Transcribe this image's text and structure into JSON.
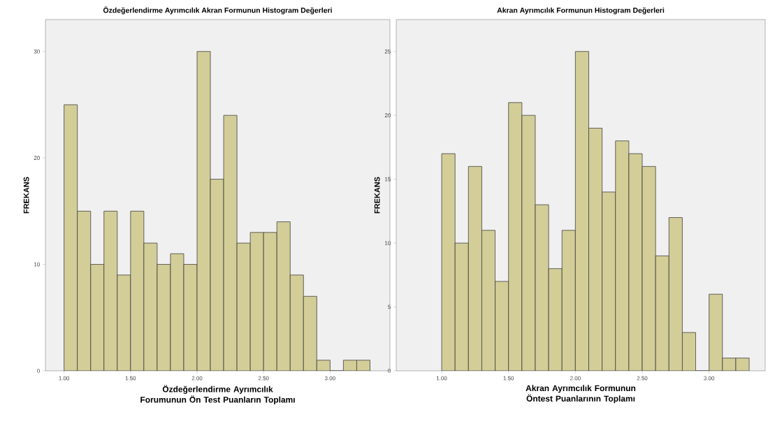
{
  "chart_data": [
    {
      "type": "histogram",
      "title": "Özdeğerlendirme Ayrımcılık Akran Formunun Histogram Değerleri",
      "xlabel": "Özdeğerlendirme Ayrımcılık Forumunun Ön Test Puanların Toplamı",
      "ylabel": "FREKANS",
      "color": "#d3cd98",
      "bins": [
        1.0,
        1.1,
        1.2,
        1.3,
        1.4,
        1.5,
        1.6,
        1.7,
        1.8,
        1.9,
        2.0,
        2.1,
        2.2,
        2.3,
        2.4,
        2.5,
        2.6,
        2.7,
        2.8,
        2.9,
        3.0,
        3.1,
        3.2,
        3.3
      ],
      "values": [
        25,
        15,
        10,
        15,
        9,
        15,
        12,
        10,
        11,
        10,
        30,
        18,
        24,
        12,
        13,
        13,
        14,
        9,
        7,
        1,
        0,
        1,
        1
      ],
      "xlim": [
        0.86,
        3.45
      ],
      "ylim": [
        0,
        33
      ],
      "xticks": [
        {
          "value": 1.0,
          "label": "1.00"
        },
        {
          "value": 1.5,
          "label": "1.50"
        },
        {
          "value": 2.0,
          "label": "2.00"
        },
        {
          "value": 2.5,
          "label": "2.50"
        },
        {
          "value": 3.0,
          "label": "3.00"
        }
      ],
      "yticks": [
        0,
        10,
        20,
        30
      ]
    },
    {
      "type": "histogram",
      "title": "Akran Ayrımcılık Formunun Histogram Değerleri",
      "xlabel": "Akran Ayrımcılık Formunun Öntest Puanlarının Toplamı",
      "ylabel": "FREKANS",
      "color": "#d3cd98",
      "bins": [
        1.0,
        1.1,
        1.2,
        1.3,
        1.4,
        1.5,
        1.6,
        1.7,
        1.8,
        1.9,
        2.0,
        2.1,
        2.2,
        2.3,
        2.4,
        2.5,
        2.6,
        2.7,
        2.8,
        2.9,
        3.0,
        3.1,
        3.2,
        3.3
      ],
      "values": [
        17,
        10,
        16,
        11,
        7,
        21,
        20,
        13,
        8,
        11,
        25,
        19,
        14,
        18,
        17,
        16,
        9,
        12,
        3,
        0,
        6,
        1,
        1
      ],
      "xlim": [
        0.66,
        3.42
      ],
      "ylim": [
        0,
        27.5
      ],
      "xticks": [
        {
          "value": 1.0,
          "label": "1.00"
        },
        {
          "value": 1.5,
          "label": "1.50"
        },
        {
          "value": 2.0,
          "label": "2.00"
        },
        {
          "value": 2.5,
          "label": "2.50"
        },
        {
          "value": 3.0,
          "label": "3.00"
        }
      ],
      "yticks": [
        0,
        5,
        10,
        15,
        20,
        25
      ]
    }
  ]
}
